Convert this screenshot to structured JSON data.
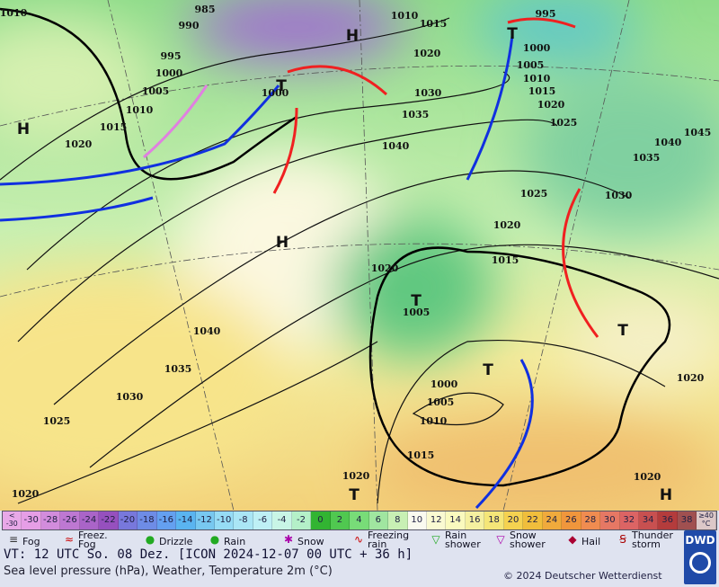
{
  "map": {
    "isobar_labels": [
      "985",
      "990",
      "995",
      "1000",
      "1005",
      "1010",
      "1015",
      "1020",
      "1010",
      "1010",
      "1015",
      "1020",
      "1030",
      "1035",
      "1040",
      "995",
      "1000",
      "1005",
      "1010",
      "1015",
      "1020",
      "1025",
      "1040",
      "1045",
      "1035",
      "1030",
      "1025",
      "1020",
      "1015",
      "1020",
      "1005",
      "1040",
      "1035",
      "1030",
      "1025",
      "1020",
      "1000",
      "1005",
      "1010",
      "1015",
      "1020",
      "1020",
      "1020",
      "1000"
    ],
    "pressure_centers": [
      "H",
      "H",
      "H",
      "T",
      "T",
      "T",
      "T",
      "T",
      "T",
      "H"
    ],
    "temperature_scale": [
      "<\n-30",
      "-30",
      "-28",
      "-26",
      "-24",
      "-22",
      "-20",
      "-18",
      "-16",
      "-14",
      "-12",
      "-10",
      "-8",
      "-6",
      "-4",
      "-2",
      "0",
      "2",
      "4",
      "6",
      "8",
      "10",
      "12",
      "14",
      "16",
      "18",
      "20",
      "22",
      "24",
      "26",
      "28",
      "30",
      "32",
      "34",
      "36",
      "38",
      "≥40\n°C"
    ],
    "legend": [
      "Fog",
      "Freez.\nFog",
      "Drizzle",
      "Rain",
      "Snow",
      "Freezing\nrain",
      "Rain\nshower",
      "Snow\nshower",
      "Hail",
      "Thunder\nstorm"
    ],
    "footer": {
      "valid_time": "VT: 12 UTC So.  08 Dez. [ICON 2024-12-07  00 UTC + 36 h]",
      "description": "Sea level pressure (hPa), Weather, Temperature 2m (°C)",
      "copyright": "© 2024 Deutscher Wetterdienst",
      "logo": "DWD"
    }
  }
}
